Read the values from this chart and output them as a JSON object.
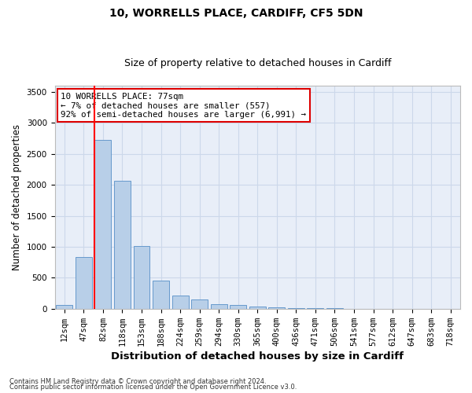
{
  "title": "10, WORRELLS PLACE, CARDIFF, CF5 5DN",
  "subtitle": "Size of property relative to detached houses in Cardiff",
  "xlabel": "Distribution of detached houses by size in Cardiff",
  "ylabel": "Number of detached properties",
  "footer1": "Contains HM Land Registry data © Crown copyright and database right 2024.",
  "footer2": "Contains public sector information licensed under the Open Government Licence v3.0.",
  "annotation_title": "10 WORRELLS PLACE: 77sqm",
  "annotation_line1": "← 7% of detached houses are smaller (557)",
  "annotation_line2": "92% of semi-detached houses are larger (6,991) →",
  "bar_labels": [
    "12sqm",
    "47sqm",
    "82sqm",
    "118sqm",
    "153sqm",
    "188sqm",
    "224sqm",
    "259sqm",
    "294sqm",
    "330sqm",
    "365sqm",
    "400sqm",
    "436sqm",
    "471sqm",
    "506sqm",
    "541sqm",
    "577sqm",
    "612sqm",
    "647sqm",
    "683sqm",
    "718sqm"
  ],
  "bar_values": [
    60,
    840,
    2720,
    2060,
    1010,
    450,
    210,
    145,
    75,
    55,
    32,
    25,
    15,
    8,
    5,
    3,
    2,
    1,
    1,
    0,
    0
  ],
  "bar_color": "#b8cfe8",
  "bar_edge_color": "#6699cc",
  "vline_color": "#ff0000",
  "vline_bar_index": 2,
  "ylim": [
    0,
    3600
  ],
  "yticks": [
    0,
    500,
    1000,
    1500,
    2000,
    2500,
    3000,
    3500
  ],
  "grid_color": "#ccd8ea",
  "bg_color": "#e8eef8",
  "title_fontsize": 10,
  "subtitle_fontsize": 9,
  "axis_label_fontsize": 8.5,
  "tick_fontsize": 7.5,
  "annotation_box_color": "#ffffff",
  "annotation_box_edge": "#dd0000",
  "footer_fontsize": 6
}
